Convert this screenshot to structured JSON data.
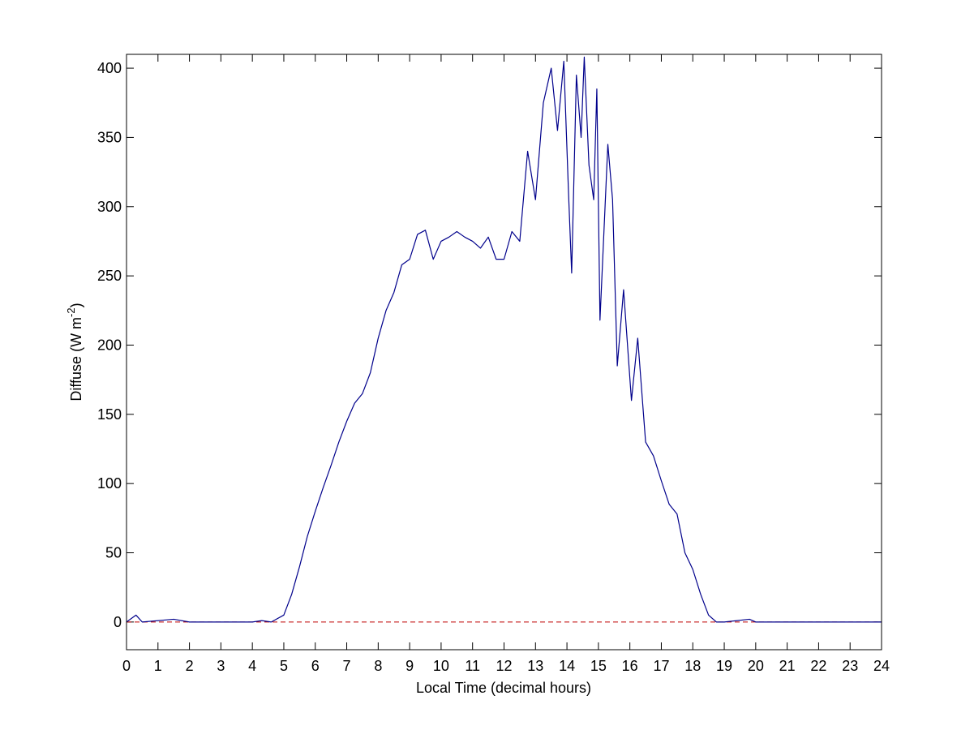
{
  "chart_data": {
    "type": "line",
    "xlabel": "Local Time (decimal hours)",
    "ylabel": [
      "Diffuse (W m",
      "-2",
      ")"
    ],
    "x": [
      0,
      0.3,
      0.5,
      1.5,
      2,
      4,
      4.3,
      4.6,
      5,
      5.25,
      5.5,
      5.75,
      6,
      6.25,
      6.5,
      6.75,
      7,
      7.25,
      7.5,
      7.75,
      8,
      8.25,
      8.5,
      8.75,
      9,
      9.25,
      9.5,
      9.75,
      10,
      10.25,
      10.5,
      10.75,
      11,
      11.25,
      11.5,
      11.75,
      12,
      12.25,
      12.5,
      12.75,
      13,
      13.25,
      13.5,
      13.7,
      13.9,
      14.05,
      14.15,
      14.3,
      14.45,
      14.55,
      14.7,
      14.85,
      14.95,
      15.05,
      15.3,
      15.45,
      15.6,
      15.8,
      16.05,
      16.25,
      16.5,
      16.75,
      17,
      17.25,
      17.5,
      17.75,
      18,
      18.25,
      18.5,
      18.75,
      19,
      19.8,
      20,
      24
    ],
    "series": [
      {
        "color": "#00008b",
        "values": [
          0,
          5,
          0,
          2,
          0,
          0,
          1,
          0,
          5,
          20,
          40,
          62,
          80,
          97,
          113,
          130,
          145,
          158,
          165,
          180,
          205,
          225,
          238,
          258,
          262,
          280,
          283,
          262,
          275,
          278,
          282,
          278,
          275,
          270,
          278,
          262,
          262,
          282,
          275,
          340,
          305,
          375,
          400,
          355,
          405,
          310,
          252,
          395,
          350,
          408,
          330,
          305,
          385,
          218,
          345,
          305,
          185,
          240,
          160,
          205,
          130,
          120,
          102,
          85,
          78,
          50,
          38,
          20,
          5,
          0,
          0,
          2,
          0,
          0
        ]
      }
    ],
    "hline": {
      "value": 0,
      "color": "#c00000",
      "style": "dashed"
    },
    "xlim": [
      0,
      24
    ],
    "xticks": [
      0,
      1,
      2,
      3,
      4,
      5,
      6,
      7,
      8,
      9,
      10,
      11,
      12,
      13,
      14,
      15,
      16,
      17,
      18,
      19,
      20,
      21,
      22,
      23,
      24
    ],
    "ylim": [
      -20,
      410
    ],
    "yticks": [
      0,
      50,
      100,
      150,
      200,
      250,
      300,
      350,
      400
    ]
  }
}
